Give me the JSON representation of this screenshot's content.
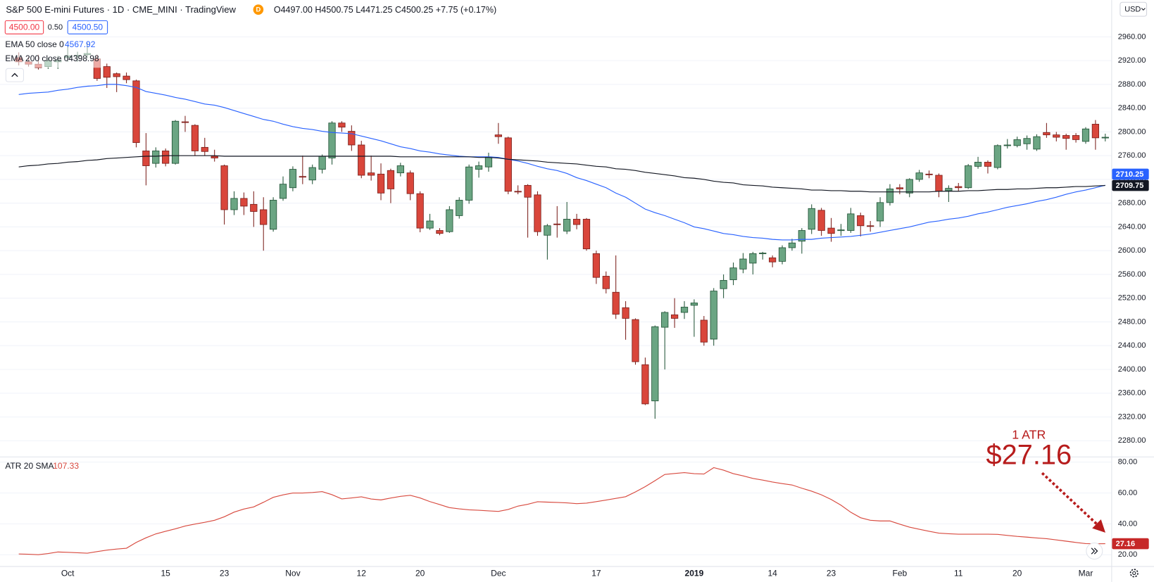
{
  "toolbar": {
    "symbol": "S&P 500 E-mini Futures · 1D · CME_MINI · TradingView",
    "badge": "D",
    "ohlc": "O4497.00 H4500.75 L4471.25 C4500.25 +7.75 (+0.17%)",
    "sell": "4500.00",
    "spread": "0.50",
    "buy": "4500.50",
    "currency": "USD"
  },
  "chart_data": [
    {
      "type": "candlestick",
      "categories": [
        null,
        null,
        null,
        null,
        null,
        "Oct",
        null,
        null,
        null,
        null,
        null,
        null,
        null,
        null,
        null,
        "15",
        null,
        null,
        null,
        null,
        null,
        "23",
        null,
        null,
        null,
        null,
        null,
        null,
        "Nov",
        null,
        null,
        null,
        null,
        null,
        null,
        "12",
        null,
        null,
        null,
        null,
        null,
        "20",
        null,
        null,
        null,
        null,
        null,
        null,
        null,
        "Dec",
        null,
        null,
        null,
        null,
        null,
        null,
        null,
        null,
        null,
        "17",
        null,
        null,
        null,
        null,
        null,
        null,
        null,
        null,
        null,
        "2019",
        null,
        null,
        null,
        null,
        null,
        null,
        null,
        "14",
        null,
        null,
        null,
        null,
        null,
        "23",
        null,
        null,
        null,
        null,
        null,
        null,
        "Feb",
        null,
        null,
        null,
        null,
        null,
        "11",
        null,
        null,
        null,
        null,
        null,
        "20",
        null,
        null,
        null,
        null,
        null,
        null,
        "Mar",
        null,
        null
      ],
      "open": [
        2925,
        2918,
        2914,
        2910,
        2918,
        2925,
        2928,
        2930,
        2923,
        2910,
        2898,
        2894,
        2886,
        2768,
        2747,
        2768,
        2747,
        2817,
        2811,
        2774,
        2759,
        2743,
        2669,
        2688,
        2678,
        2669,
        2636,
        2688,
        2706,
        2725,
        2719,
        2737,
        2756,
        2815,
        2801,
        2778,
        2731,
        2729,
        2735,
        2731,
        2731,
        2696,
        2638,
        2634,
        2632,
        2659,
        2685,
        2737,
        2741,
        2795,
        2790,
        2700,
        2710,
        2694,
        2626,
        2645,
        2633,
        2653,
        2653,
        2595,
        2557,
        2530,
        2504,
        2484,
        2408,
        2347,
        2471,
        2492,
        2496,
        2508,
        2483,
        2451,
        2536,
        2551,
        2569,
        2579,
        2595,
        2588,
        2582,
        2605,
        2616,
        2636,
        2668,
        2638,
        2634,
        2634,
        2659,
        2642,
        2650,
        2681,
        2706,
        2697,
        2720,
        2729,
        2727,
        2701,
        2708,
        2706,
        2742,
        2749,
        2740,
        2777,
        2777,
        2780,
        2771,
        2799,
        2795,
        2794,
        2794,
        2784,
        2813,
        2790
      ],
      "high": [
        2934,
        2926,
        2930,
        2925,
        2928,
        2946,
        2935,
        2950,
        2930,
        2915,
        2900,
        2900,
        2888,
        2798,
        2774,
        2772,
        2820,
        2827,
        2813,
        2790,
        2770,
        2745,
        2700,
        2698,
        2700,
        2690,
        2690,
        2725,
        2742,
        2760,
        2745,
        2762,
        2818,
        2818,
        2811,
        2785,
        2760,
        2747,
        2738,
        2748,
        2735,
        2700,
        2662,
        2638,
        2675,
        2690,
        2745,
        2750,
        2765,
        2815,
        2792,
        2710,
        2712,
        2700,
        2645,
        2675,
        2682,
        2662,
        2655,
        2600,
        2565,
        2592,
        2515,
        2486,
        2420,
        2474,
        2498,
        2520,
        2515,
        2518,
        2490,
        2537,
        2560,
        2580,
        2596,
        2598,
        2598,
        2592,
        2609,
        2620,
        2638,
        2678,
        2672,
        2655,
        2645,
        2672,
        2664,
        2650,
        2690,
        2712,
        2712,
        2722,
        2736,
        2735,
        2730,
        2710,
        2714,
        2746,
        2758,
        2752,
        2779,
        2788,
        2792,
        2794,
        2796,
        2815,
        2800,
        2797,
        2798,
        2808,
        2820,
        2797
      ],
      "low": [
        2912,
        2910,
        2905,
        2906,
        2906,
        2918,
        2918,
        2924,
        2886,
        2874,
        2867,
        2882,
        2774,
        2710,
        2740,
        2742,
        2745,
        2800,
        2760,
        2760,
        2750,
        2644,
        2660,
        2660,
        2640,
        2600,
        2632,
        2684,
        2700,
        2712,
        2712,
        2730,
        2745,
        2800,
        2768,
        2722,
        2718,
        2685,
        2680,
        2725,
        2685,
        2631,
        2635,
        2626,
        2630,
        2654,
        2679,
        2723,
        2733,
        2780,
        2695,
        2695,
        2622,
        2625,
        2585,
        2622,
        2628,
        2636,
        2600,
        2544,
        2528,
        2485,
        2450,
        2408,
        2340,
        2317,
        2400,
        2470,
        2485,
        2455,
        2440,
        2440,
        2520,
        2542,
        2562,
        2560,
        2585,
        2572,
        2577,
        2600,
        2595,
        2628,
        2625,
        2615,
        2625,
        2630,
        2624,
        2632,
        2640,
        2676,
        2695,
        2690,
        2716,
        2722,
        2690,
        2682,
        2700,
        2704,
        2738,
        2730,
        2737,
        2772,
        2774,
        2770,
        2768,
        2790,
        2784,
        2770,
        2782,
        2780,
        2770,
        2784
      ],
      "close": [
        2918,
        2914,
        2908,
        2920,
        2921,
        2928,
        2929,
        2932,
        2890,
        2892,
        2893,
        2888,
        2782,
        2743,
        2768,
        2747,
        2818,
        2816,
        2768,
        2767,
        2756,
        2669,
        2688,
        2675,
        2666,
        2644,
        2685,
        2712,
        2737,
        2724,
        2740,
        2759,
        2815,
        2808,
        2778,
        2727,
        2727,
        2697,
        2704,
        2743,
        2696,
        2638,
        2650,
        2629,
        2669,
        2685,
        2741,
        2743,
        2758,
        2792,
        2700,
        2699,
        2690,
        2632,
        2642,
        2644,
        2653,
        2644,
        2603,
        2555,
        2536,
        2493,
        2486,
        2413,
        2342,
        2472,
        2496,
        2486,
        2505,
        2512,
        2446,
        2532,
        2550,
        2571,
        2586,
        2595,
        2596,
        2581,
        2605,
        2613,
        2634,
        2671,
        2634,
        2629,
        2635,
        2662,
        2642,
        2641,
        2681,
        2704,
        2704,
        2720,
        2731,
        2728,
        2700,
        2705,
        2706,
        2743,
        2749,
        2742,
        2777,
        2778,
        2787,
        2789,
        2792,
        2795,
        2791,
        2789,
        2787,
        2805,
        2790,
        2791
      ],
      "up_color": "#6ba583",
      "down_color": "#d9463b",
      "up_border": "#225437",
      "down_border": "#7b1f1b",
      "series": [
        {
          "name": "EMA 50 close 0",
          "legend_value": "4567.92",
          "color": "#2962ff",
          "values": [
            2863,
            2865,
            2866,
            2867,
            2870,
            2872,
            2875,
            2877,
            2878,
            2880,
            2880,
            2878,
            2875,
            2868,
            2865,
            2862,
            2858,
            2855,
            2851,
            2847,
            2845,
            2841,
            2836,
            2831,
            2826,
            2821,
            2818,
            2813,
            2809,
            2806,
            2804,
            2801,
            2799,
            2798,
            2797,
            2793,
            2789,
            2785,
            2780,
            2775,
            2772,
            2768,
            2766,
            2763,
            2761,
            2759,
            2758,
            2758,
            2758,
            2757,
            2754,
            2751,
            2747,
            2742,
            2738,
            2735,
            2730,
            2723,
            2718,
            2712,
            2706,
            2697,
            2690,
            2680,
            2670,
            2664,
            2659,
            2653,
            2647,
            2640,
            2637,
            2633,
            2629,
            2627,
            2624,
            2622,
            2621,
            2619,
            2618,
            2618,
            2619,
            2619,
            2621,
            2622,
            2623,
            2624,
            2626,
            2628,
            2631,
            2634,
            2637,
            2640,
            2644,
            2648,
            2650,
            2653,
            2655,
            2658,
            2662,
            2665,
            2669,
            2673,
            2676,
            2679,
            2683,
            2686,
            2690,
            2695,
            2699,
            2702,
            2706,
            2710.25
          ]
        },
        {
          "name": "EMA 200 close 0",
          "legend_value": "4398.98",
          "color": "#131722",
          "values": [
            2741,
            2743,
            2744,
            2746,
            2747,
            2749,
            2750,
            2752,
            2753,
            2755,
            2756,
            2757,
            2758,
            2759,
            2759,
            2760,
            2760,
            2760,
            2760,
            2760,
            2760,
            2759,
            2759,
            2759,
            2759,
            2759,
            2759,
            2759,
            2759,
            2759,
            2759,
            2759,
            2759,
            2759,
            2759,
            2759,
            2759,
            2759,
            2759,
            2758,
            2758,
            2758,
            2758,
            2758,
            2758,
            2758,
            2758,
            2757,
            2757,
            2756,
            2754,
            2753,
            2752,
            2751,
            2749,
            2748,
            2747,
            2746,
            2744,
            2742,
            2741,
            2738,
            2737,
            2735,
            2732,
            2730,
            2728,
            2726,
            2723,
            2722,
            2720,
            2717,
            2715,
            2714,
            2711,
            2710,
            2709,
            2707,
            2706,
            2705,
            2704,
            2702,
            2702,
            2701,
            2701,
            2700,
            2700,
            2699,
            2699,
            2699,
            2699,
            2699,
            2699,
            2699,
            2700,
            2700,
            2700,
            2701,
            2701,
            2702,
            2703,
            2703,
            2704,
            2704,
            2705,
            2706,
            2706,
            2707,
            2708,
            2708,
            2709,
            2709.75
          ]
        }
      ],
      "ylim": [
        2254,
        3022
      ],
      "yticks": [
        {
          "value": 2280,
          "label": "2280.00"
        },
        {
          "value": 2320,
          "label": "2320.00"
        },
        {
          "value": 2360,
          "label": "2360.00"
        },
        {
          "value": 2400,
          "label": "2400.00"
        },
        {
          "value": 2440,
          "label": "2440.00"
        },
        {
          "value": 2480,
          "label": "2480.00"
        },
        {
          "value": 2520,
          "label": "2520.00"
        },
        {
          "value": 2560,
          "label": "2560.00"
        },
        {
          "value": 2600,
          "label": "2600.00"
        },
        {
          "value": 2640,
          "label": "2640.00"
        },
        {
          "value": 2680,
          "label": "2680.00"
        },
        {
          "value": 2720,
          "label": "2720.00"
        },
        {
          "value": 2760,
          "label": "2760.00"
        },
        {
          "value": 2800,
          "label": "2800.00"
        },
        {
          "value": 2840,
          "label": "2840.00"
        },
        {
          "value": 2880,
          "label": "2880.00"
        },
        {
          "value": 2920,
          "label": "2920.00"
        },
        {
          "value": 2960,
          "label": "2960.00"
        }
      ],
      "grid": true
    },
    {
      "type": "line",
      "name": "ATR 20 SMA",
      "legend_value": "107.33",
      "color": "#d84a3f",
      "tag_color": "#c62828",
      "values": [
        20.5,
        20.3,
        20.0,
        20.8,
        21.8,
        21.6,
        21.3,
        21.0,
        22.0,
        23.0,
        23.7,
        24.2,
        28.0,
        31.0,
        33.5,
        35.2,
        36.8,
        38.6,
        39.9,
        41.0,
        42.3,
        44.6,
        47.6,
        49.6,
        51.0,
        54.0,
        57.2,
        58.8,
        60.0,
        60.0,
        60.3,
        60.9,
        58.9,
        56.2,
        56.8,
        57.5,
        56.1,
        55.5,
        56.7,
        57.8,
        58.5,
        56.8,
        54.4,
        52.5,
        50.5,
        49.7,
        49.1,
        48.8,
        48.4,
        48.1,
        49.3,
        51.5,
        52.7,
        54.3,
        54.1,
        53.9,
        53.6,
        53.1,
        53.4,
        54.4,
        55.4,
        56.5,
        57.6,
        60.7,
        64.1,
        68.0,
        72.0,
        72.6,
        73.2,
        72.5,
        72.3,
        76.4,
        74.8,
        72.5,
        71.1,
        69.4,
        68.3,
        67.1,
        66.1,
        65.2,
        63.1,
        61.2,
        58.8,
        55.8,
        52.1,
        47.5,
        44.0,
        42.3,
        41.9,
        41.9,
        39.8,
        37.9,
        36.5,
        35.2,
        34.0,
        33.6,
        33.3,
        33.3,
        33.3,
        33.3,
        33.2,
        32.5,
        31.9,
        31.4,
        30.9,
        30.4,
        29.6,
        28.8,
        28.0,
        27.2,
        27.1,
        27.16
      ],
      "ylim": [
        12.4,
        82.9
      ],
      "yticks": [
        {
          "value": 20,
          "label": "20.00"
        },
        {
          "value": 40,
          "label": "40.00"
        },
        {
          "value": 60,
          "label": "60.00"
        },
        {
          "value": 80,
          "label": "80.00"
        }
      ],
      "grid": true,
      "annotation": {
        "label": "1 ATR",
        "text": "$27.16"
      }
    }
  ]
}
